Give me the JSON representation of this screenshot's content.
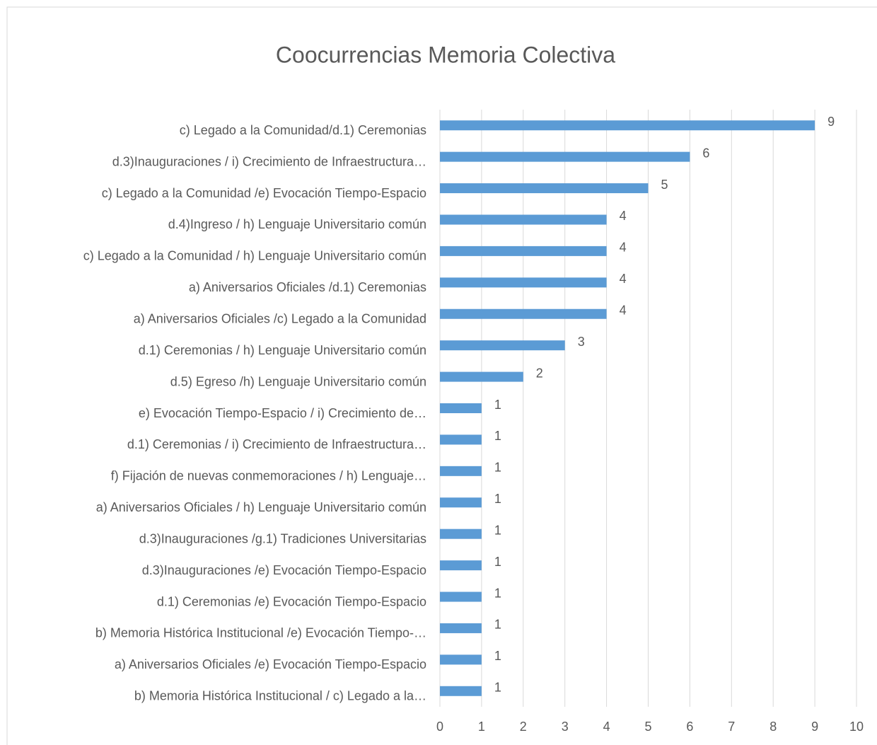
{
  "chart_data": {
    "type": "hbar",
    "title": "Coocurrencias Memoria Colectiva",
    "categories": [
      "c) Legado a la Comunidad/d.1) Ceremonias",
      "d.3)Inauguraciones / i) Crecimiento de Infraestructura…",
      "c) Legado a la Comunidad /e) Evocación Tiempo-Espacio",
      "d.4)Ingreso / h) Lenguaje Universitario común",
      "c) Legado a la Comunidad / h) Lenguaje Universitario común",
      "a) Aniversarios Oficiales /d.1) Ceremonias",
      "a) Aniversarios Oficiales /c) Legado a la Comunidad",
      "d.1) Ceremonias / h) Lenguaje Universitario común",
      "d.5) Egreso /h) Lenguaje Universitario común",
      "e) Evocación Tiempo-Espacio / i) Crecimiento de…",
      "d.1) Ceremonias / i) Crecimiento de Infraestructura…",
      "f)  Fijación de nuevas conmemoraciones / h) Lenguaje…",
      "a) Aniversarios Oficiales / h) Lenguaje Universitario común",
      "d.3)Inauguraciones /g.1) Tradiciones Universitarias",
      "d.3)Inauguraciones /e) Evocación Tiempo-Espacio",
      "d.1) Ceremonias /e) Evocación Tiempo-Espacio",
      "b) Memoria Histórica Institucional /e) Evocación Tiempo-…",
      "a) Aniversarios Oficiales /e) Evocación Tiempo-Espacio",
      "b) Memoria Histórica Institucional / c) Legado a la…"
    ],
    "values": [
      9,
      6,
      5,
      4,
      4,
      4,
      4,
      3,
      2,
      1,
      1,
      1,
      1,
      1,
      1,
      1,
      1,
      1,
      1
    ],
    "color": "#5b9bd5",
    "xlim": [
      0,
      10
    ],
    "xticks": [
      0,
      1,
      2,
      3,
      4,
      5,
      6,
      7,
      8,
      9,
      10
    ],
    "grid": true
  }
}
